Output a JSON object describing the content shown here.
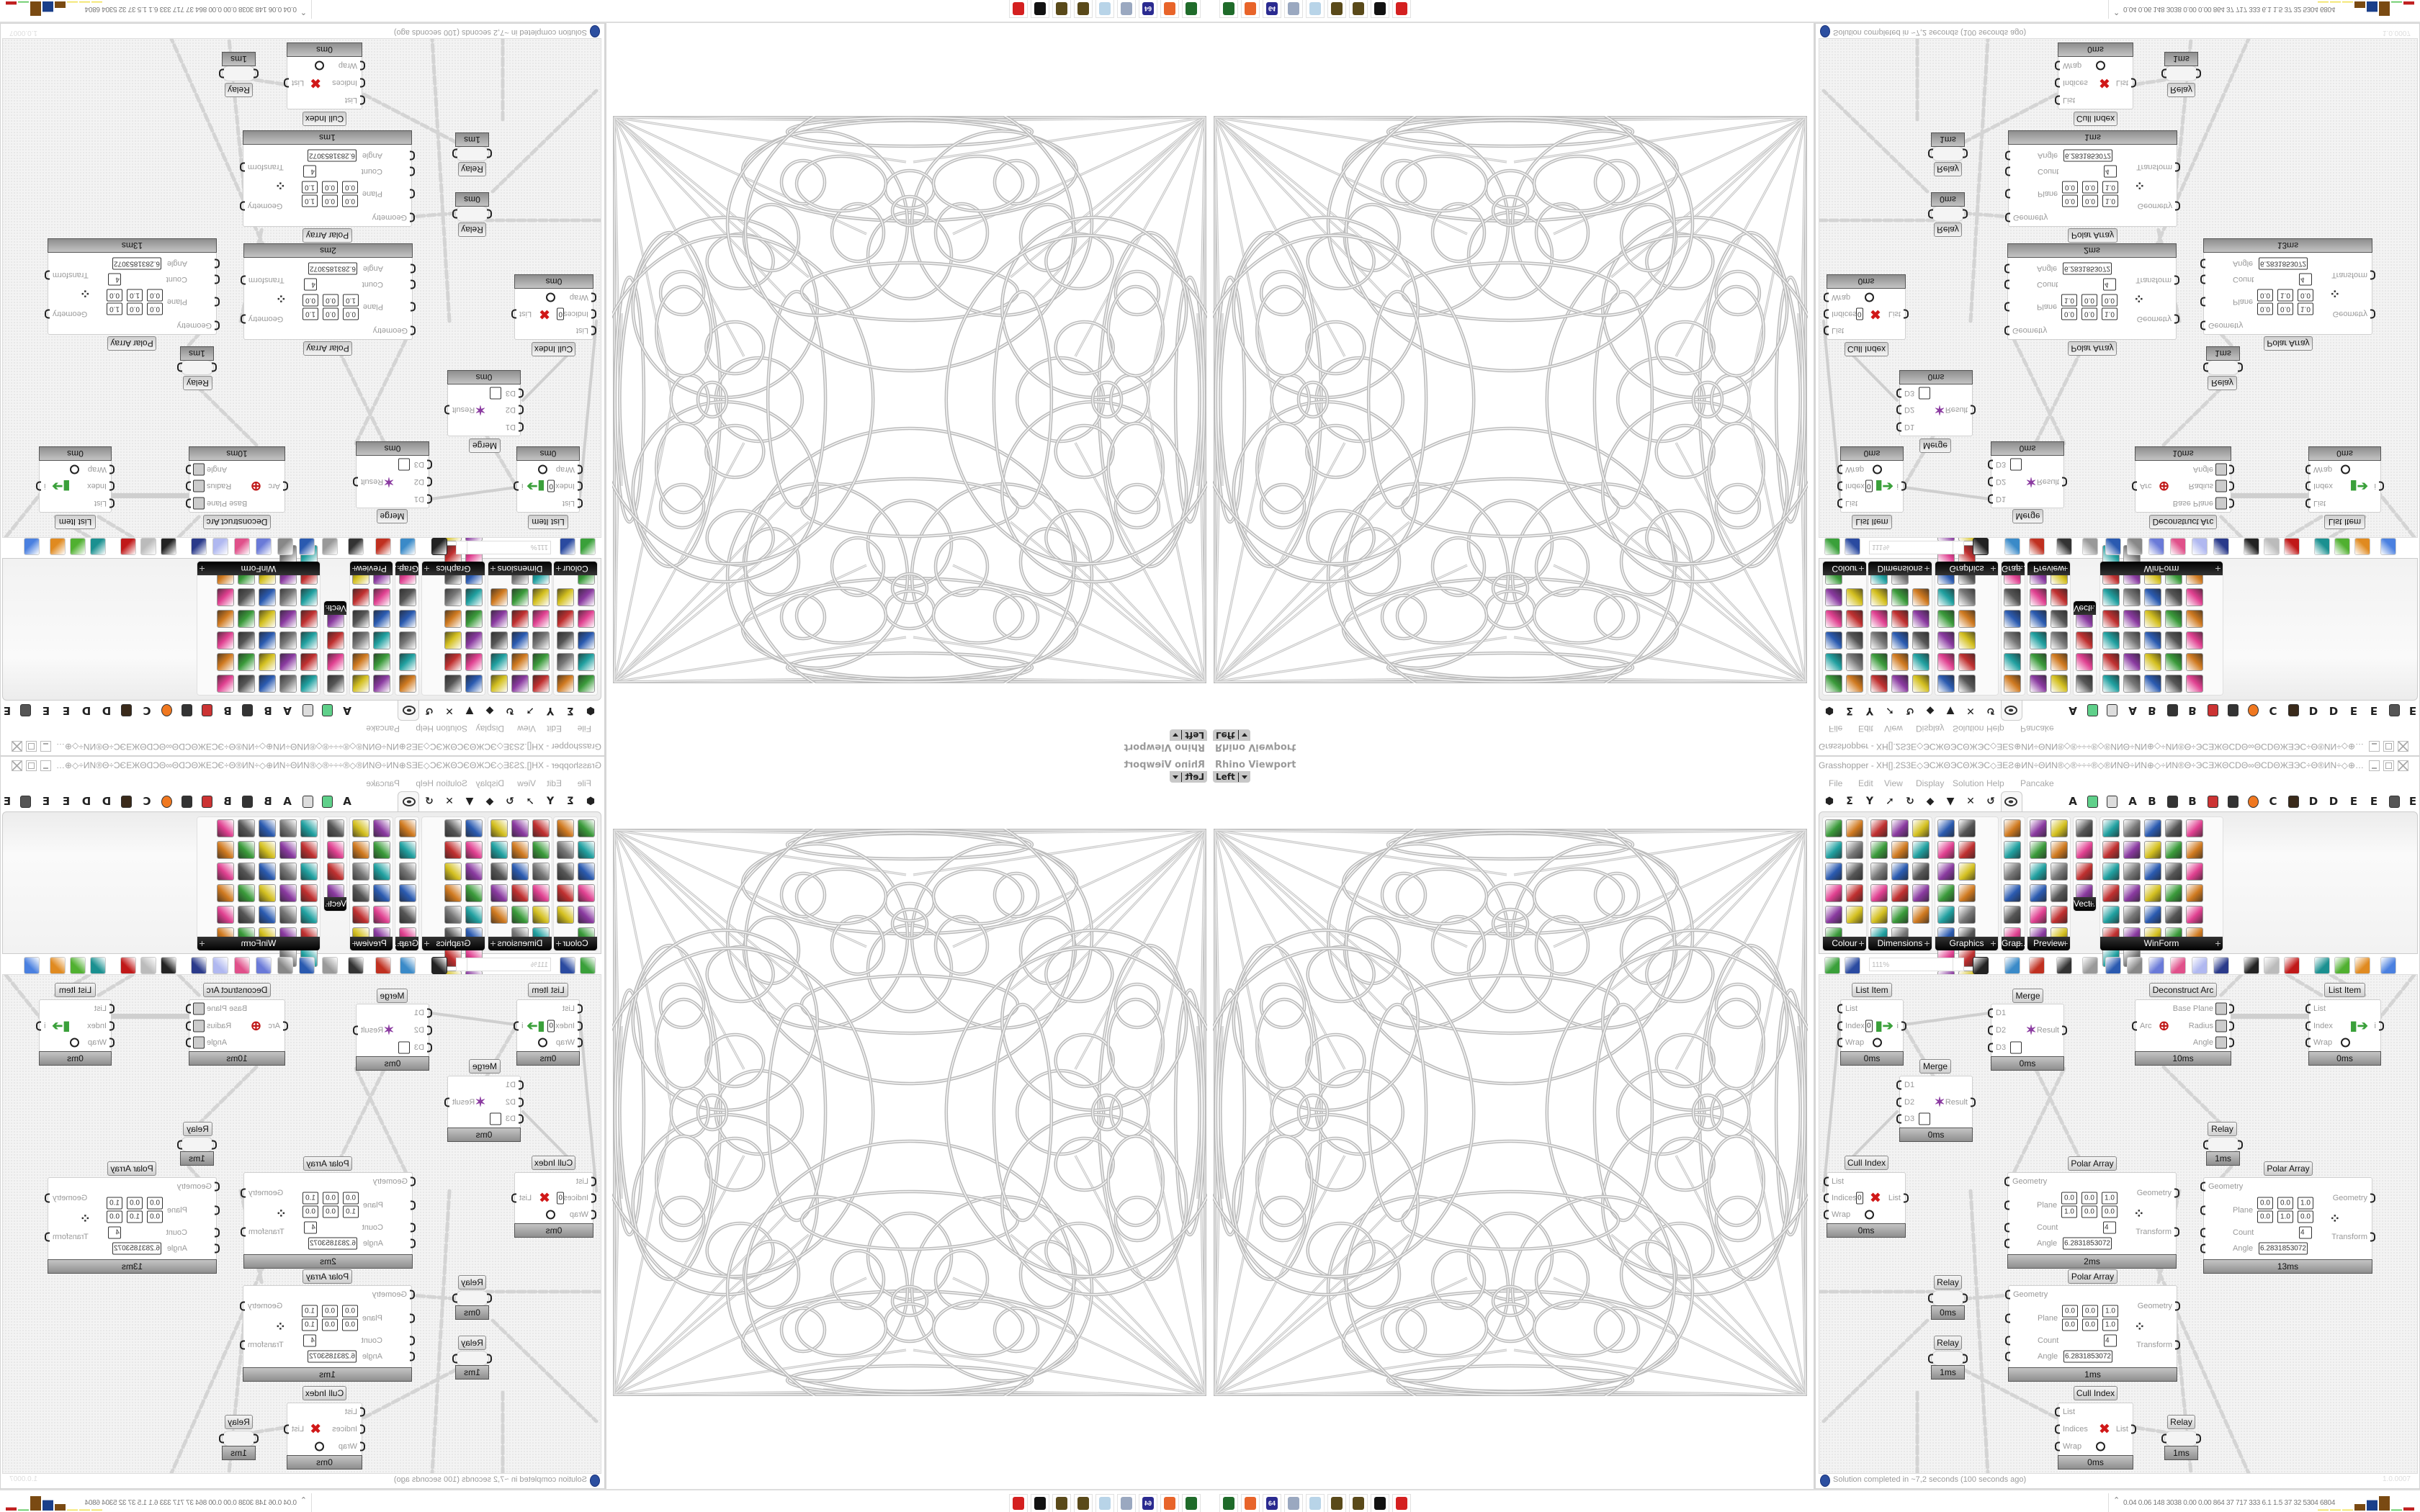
{
  "viewport": {
    "title": "Rhino Viewport",
    "view_name": "Left"
  },
  "taskbar": {
    "icons": [
      {
        "name": "terminal-icon",
        "color": "#1f6b2a",
        "label": ""
      },
      {
        "name": "firefox-icon",
        "color": "#e8642a",
        "label": ""
      },
      {
        "name": "floppy-64-icon",
        "color": "#2a2a90",
        "label": "64"
      },
      {
        "name": "scroll-document-icon",
        "color": "#9aa8c0",
        "label": ""
      },
      {
        "name": "notepad-icon",
        "color": "#b8d4e8",
        "label": ""
      },
      {
        "name": "pinecone-icon",
        "color": "#5a4a1a",
        "label": ""
      },
      {
        "name": "pinecone-icon",
        "color": "#5a4a1a",
        "label": ""
      },
      {
        "name": "wolf-icon",
        "color": "#111111",
        "label": ""
      },
      {
        "name": "red-skull-icon",
        "color": "#d42020",
        "label": ""
      }
    ],
    "tray_stats": "0.04 0.06 148 3038 0.00 0.00 864 37 717 333 6.1 1.5 37 32 5304 6804",
    "tray_meter": [
      {
        "level": 0.05,
        "color": "#f0e050"
      },
      {
        "level": 0.05,
        "color": "#f0e050"
      },
      {
        "level": 0.05,
        "color": "#f0e050"
      },
      {
        "level": 0.45,
        "color": "#7a4a12"
      },
      {
        "level": 0.72,
        "color": "#1a3f8a"
      },
      {
        "level": 1.0,
        "color": "#7a4a12"
      },
      {
        "level": 0.06,
        "color": "#4ec24e"
      },
      {
        "level": 0.22,
        "color": "#c02020"
      }
    ]
  },
  "grasshopper": {
    "window_title": "Grasshopper - XH[].2S3E◇ЭCЖΘЭCΘЖЭC◇ƎEƧ⊕ИN÷ΘИN®◇®÷÷÷®◇®ИNΘ÷ИN⊕◇÷ИN®Θ÷ЭCƎЖΘCDΘ∞ΘCDΘЖƎЭC÷Θ®ИN÷◇⊕ƎЖƎ⊞÷ƧS÷⊞ƎЖƎ⊕◇÷ЖCDƎ⊞÷÷ЭC...",
    "menu": [
      "File",
      "Edit",
      "View",
      "Display",
      "Solution",
      "Help",
      "Pancake"
    ],
    "tab_icons_left": [
      "params-tab-icon",
      "maths-tab-icon",
      "sets-tab-icon",
      "vector-tab-icon",
      "curve-tab-icon",
      "surface-tab-icon",
      "mesh-tab-icon",
      "intersect-tab-icon",
      "transform-tab-icon"
    ],
    "active_tab_icon": "display-eye-tab-icon",
    "tab_icons_right": [
      {
        "name": "letter-a-tab-icon",
        "glyph": "A"
      },
      {
        "name": "green-gem-tab-icon",
        "glyph": ""
      },
      {
        "name": "puzzle-tab-icon",
        "glyph": ""
      },
      {
        "name": "letter-a-tab-icon",
        "glyph": "A"
      },
      {
        "name": "letter-b-tab-icon",
        "glyph": "B"
      },
      {
        "name": "mountain-tab-icon",
        "glyph": ""
      },
      {
        "name": "letter-b-tab-icon",
        "glyph": "B"
      },
      {
        "name": "shield-tab-icon",
        "glyph": ""
      },
      {
        "name": "grid-tab-icon",
        "glyph": ""
      },
      {
        "name": "orange-circle-tab-icon",
        "glyph": ""
      },
      {
        "name": "letter-c-tab-icon",
        "glyph": "C"
      },
      {
        "name": "rooster-tab-icon",
        "glyph": ""
      },
      {
        "name": "letter-d-tab-icon",
        "glyph": "D"
      },
      {
        "name": "letter-d-tab-icon",
        "glyph": "D"
      },
      {
        "name": "letter-e-tab-icon",
        "glyph": "E"
      },
      {
        "name": "letter-e-tab-icon",
        "glyph": "E"
      },
      {
        "name": "dotted-square-tab-icon",
        "glyph": ""
      },
      {
        "name": "letter-e-tab-icon",
        "glyph": "E"
      }
    ],
    "ribbon_groups": [
      {
        "label": "Colour",
        "icons": [
          "colour-wheel",
          "gradient",
          "colour-box",
          "spectrum",
          "colour-cube",
          "hsl",
          "red-sphere",
          "hsv",
          "red-drop",
          "prism",
          "colour-swatch"
        ]
      },
      {
        "label": "Dimensions",
        "icons": [
          "tag-delete",
          "linear-dimension",
          "angular-dimension",
          "text-tag",
          "line-draw",
          "box-dimension",
          "magenta-swatch",
          "ordinate-dimension",
          "offset-dimension",
          "grid-mesh",
          "angle-dimension",
          "aligned-dimension",
          "polyline-dimension",
          "radius-dimension",
          "zoom-dimension",
          "line-segment",
          "triangle-mesh"
        ]
      },
      {
        "label": "Graphics",
        "icons": [
          "dark-circle",
          "text-circle",
          "eye-ring",
          "dotted-circle",
          "text-t",
          "square-ring",
          "blur-dot",
          "list-disc",
          "gear-wheel",
          "ring",
          "chain-link",
          "save-image",
          "shaded-sphere",
          "point-circle",
          "save-star",
          "dark-sphere",
          "yin-yang"
        ]
      },
      {
        "label": "Grap...",
        "icons": [
          "histogram",
          "gradient-legend",
          "pie-chart",
          "line-graph",
          "image-stack",
          "area-graph"
        ]
      },
      {
        "label": "Preview",
        "icons": [
          "egg-shade",
          "camera-preview",
          "sphere-preview",
          "landscape-image",
          "blue-blobs",
          "blue-heart",
          "red-blobs",
          "green-heart",
          "slash-square",
          "pink-hearts",
          "sl-script",
          "tree-image"
        ]
      },
      {
        "label": "Vect...",
        "icons": [
          "number-sort",
          "vector-path",
          "red-arrows",
          "green-arrows"
        ]
      },
      {
        "label": "WinForm",
        "icons": [
          "label-a",
          "list-box",
          "text-box",
          "label-button",
          "line-chart",
          "data-grid",
          "hatch-green",
          "slider-track",
          "slider-handle",
          "green-grid",
          "pie-toggle",
          "panel-layout",
          "checkbox",
          "text-lines",
          "image-trees",
          "yellow-pie",
          "user-widget",
          "panel-stack",
          "numeric-updown",
          "gears-image",
          "split-bar",
          "text-a-plus",
          "ok-button",
          "numeric-box",
          "vertical-slider",
          "check-list",
          "green-panel",
          "calendar",
          "vertical-scroll",
          "progress-bar",
          "bar-chart",
          "export-arrow"
        ]
      }
    ],
    "toolbar": {
      "zoom_level": "111%",
      "icons": [
        "new-file-icon",
        "save-icon",
        "zoom-extents-icon",
        "preview-eye-icon",
        "sketch-pen-icon",
        "plug-icon",
        "email-icon",
        "gha-export-icon",
        "document-icon",
        "search-s-icon",
        "box-question-icon",
        "balloon-icon",
        "cross-strands-icon",
        "black-sphere-icon",
        "wire-torus-icon",
        "red-gem-icon",
        "teal-shape-icon",
        "green-shape-icon",
        "orange-sphere-icon",
        "blue-hex-icon"
      ]
    },
    "canvas": {
      "components": [
        {
          "kind": "list",
          "title": "List Item",
          "inputs": [
            "List",
            "Index",
            "Wrap"
          ],
          "outputs": [
            "i"
          ],
          "index_value": "0",
          "footer": "0ms"
        },
        {
          "kind": "merge",
          "title": "Merge",
          "inputs": [
            "D1",
            "D2",
            "D3"
          ],
          "outputs": [
            "Result"
          ],
          "footer": "0ms"
        },
        {
          "kind": "arc",
          "title": "Deconstruct Arc",
          "inputs": [
            "Arc"
          ],
          "outputs": [
            "Base Plane",
            "Radius",
            "Angle"
          ],
          "footer": "10ms"
        },
        {
          "kind": "list",
          "title": "List Item",
          "inputs": [
            "List",
            "Index",
            "Wrap"
          ],
          "outputs": [
            "i"
          ],
          "footer": "0ms"
        },
        {
          "kind": "merge",
          "title": "Merge",
          "inputs": [
            "D1",
            "D2",
            "D3"
          ],
          "outputs": [
            "Result"
          ],
          "footer": "0ms"
        },
        {
          "kind": "relay",
          "title": "Relay",
          "inputs": [],
          "outputs": [],
          "footer": "1ms"
        },
        {
          "kind": "cull",
          "title": "Cull Index",
          "inputs": [
            "List",
            "Indices",
            "Wrap"
          ],
          "outputs": [
            "List"
          ],
          "index_value": "0",
          "footer": "0ms"
        },
        {
          "kind": "polar",
          "title": "Polar Array",
          "inputs": [
            "Geometry",
            "Plane",
            "Count",
            "Angle"
          ],
          "outputs": [
            "Geometry",
            "Transform"
          ],
          "plane_origin": [
            "0.0",
            "0.0",
            "1.0"
          ],
          "plane_z": [
            "1.0",
            "0.0",
            "0.0"
          ],
          "count": "4",
          "angle": "6.2831853072",
          "footer": "2ms"
        },
        {
          "kind": "polar",
          "title": "Polar Array",
          "inputs": [
            "Geometry",
            "Plane",
            "Count",
            "Angle"
          ],
          "outputs": [
            "Geometry",
            "Transform"
          ],
          "plane_origin": [
            "0.0",
            "0.0",
            "1.0"
          ],
          "plane_z": [
            "0.0",
            "1.0",
            "0.0"
          ],
          "count": "4",
          "angle": "6.2831853072",
          "footer": "13ms"
        },
        {
          "kind": "relay",
          "title": "Relay",
          "inputs": [],
          "outputs": [],
          "footer": "0ms"
        },
        {
          "kind": "relay",
          "title": "Relay",
          "inputs": [],
          "outputs": [],
          "footer": "1ms"
        },
        {
          "kind": "polar",
          "title": "Polar Array",
          "inputs": [
            "Geometry",
            "Plane",
            "Count",
            "Angle"
          ],
          "outputs": [
            "Geometry",
            "Transform"
          ],
          "plane_origin": [
            "0.0",
            "0.0",
            "1.0"
          ],
          "plane_z": [
            "0.0",
            "0.0",
            "1.0"
          ],
          "count": "4",
          "angle": "6.2831853072",
          "footer": "1ms"
        },
        {
          "kind": "cull",
          "title": "Cull Index",
          "inputs": [
            "List",
            "Indices",
            "Wrap"
          ],
          "outputs": [
            "List"
          ],
          "footer": "0ms"
        },
        {
          "kind": "relay",
          "title": "Relay",
          "inputs": [],
          "outputs": [],
          "footer": "1ms"
        }
      ]
    },
    "status": {
      "message": "Solution completed in ~7,2 seconds (100 seconds ago)",
      "version": "1.0.0007"
    }
  }
}
